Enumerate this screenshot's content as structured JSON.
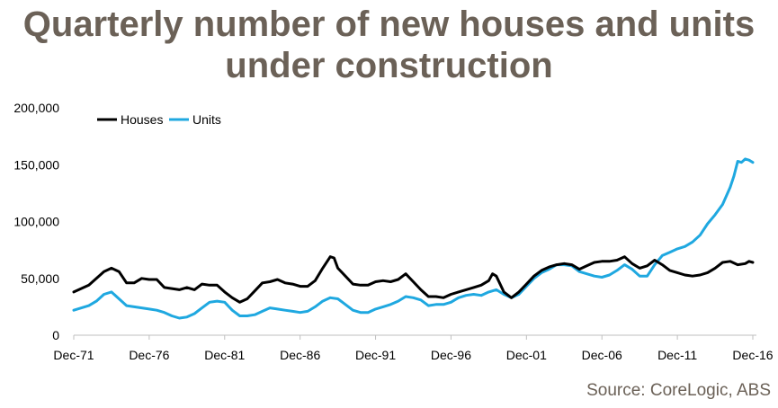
{
  "title_line1": "Quarterly number of new houses and units",
  "title_line2": "under construction",
  "source": "Source: CoreLogic, ABS",
  "colors": {
    "houses": "#000000",
    "units": "#1fa8e0",
    "title": "#6b6157"
  },
  "chart_data": {
    "type": "line",
    "title": "Quarterly number of new houses and units under construction",
    "xlabel": "",
    "ylabel": "",
    "x_start_year": 1971.92,
    "x_end_year": 2016.92,
    "xlim": [
      "Dec-71",
      "Dec-16"
    ],
    "ylim": [
      0,
      200000
    ],
    "y_ticks": [
      0,
      50000,
      100000,
      150000,
      200000
    ],
    "y_tick_labels": [
      "0",
      "50,000",
      "100,000",
      "150,000",
      "200,000"
    ],
    "x_ticks": [
      "Dec-71",
      "Dec-76",
      "Dec-81",
      "Dec-86",
      "Dec-91",
      "Dec-96",
      "Dec-01",
      "Dec-06",
      "Dec-11",
      "Dec-16"
    ],
    "grid": false,
    "legend": "top-left",
    "series": [
      {
        "name": "Houses",
        "color": "#000000",
        "points": [
          [
            "Dec-71",
            38000
          ],
          [
            "Dec-72",
            44000
          ],
          [
            "Dec-73",
            56000
          ],
          [
            "Jun-74",
            59000
          ],
          [
            "Dec-74",
            56000
          ],
          [
            "Jun-75",
            46000
          ],
          [
            "Dec-75",
            46000
          ],
          [
            "Jun-76",
            50000
          ],
          [
            "Dec-76",
            49000
          ],
          [
            "Jun-77",
            49000
          ],
          [
            "Dec-77",
            42000
          ],
          [
            "Jun-78",
            41000
          ],
          [
            "Dec-78",
            40000
          ],
          [
            "Jun-79",
            42000
          ],
          [
            "Dec-79",
            40000
          ],
          [
            "Jun-80",
            45000
          ],
          [
            "Dec-80",
            44000
          ],
          [
            "Jun-81",
            44000
          ],
          [
            "Dec-81",
            38000
          ],
          [
            "Jun-82",
            33000
          ],
          [
            "Dec-82",
            29000
          ],
          [
            "Jun-83",
            32000
          ],
          [
            "Dec-83",
            39000
          ],
          [
            "Jun-84",
            46000
          ],
          [
            "Dec-84",
            47000
          ],
          [
            "Jun-85",
            49000
          ],
          [
            "Dec-85",
            46000
          ],
          [
            "Jun-86",
            45000
          ],
          [
            "Dec-86",
            43000
          ],
          [
            "Jun-87",
            43000
          ],
          [
            "Dec-87",
            48000
          ],
          [
            "Jun-88",
            59000
          ],
          [
            "Dec-88",
            69000
          ],
          [
            "Mar-89",
            68000
          ],
          [
            "Jun-89",
            59000
          ],
          [
            "Dec-89",
            52000
          ],
          [
            "Jun-90",
            45000
          ],
          [
            "Dec-90",
            44000
          ],
          [
            "Jun-91",
            44000
          ],
          [
            "Dec-91",
            47000
          ],
          [
            "Jun-92",
            48000
          ],
          [
            "Dec-92",
            47000
          ],
          [
            "Jun-93",
            49000
          ],
          [
            "Dec-93",
            54000
          ],
          [
            "Jun-94",
            47000
          ],
          [
            "Dec-94",
            40000
          ],
          [
            "Jun-95",
            34000
          ],
          [
            "Dec-95",
            34000
          ],
          [
            "Jun-96",
            33000
          ],
          [
            "Dec-96",
            36000
          ],
          [
            "Jun-97",
            38000
          ],
          [
            "Dec-97",
            40000
          ],
          [
            "Jun-98",
            42000
          ],
          [
            "Dec-98",
            44000
          ],
          [
            "Jun-99",
            48000
          ],
          [
            "Sep-99",
            54000
          ],
          [
            "Dec-99",
            52000
          ],
          [
            "Jun-00",
            38000
          ],
          [
            "Dec-00",
            33000
          ],
          [
            "Jun-01",
            38000
          ],
          [
            "Dec-01",
            45000
          ],
          [
            "Jun-02",
            52000
          ],
          [
            "Dec-02",
            57000
          ],
          [
            "Jun-03",
            60000
          ],
          [
            "Dec-03",
            62000
          ],
          [
            "Jun-04",
            63000
          ],
          [
            "Dec-04",
            62000
          ],
          [
            "Jun-05",
            58000
          ],
          [
            "Dec-05",
            61000
          ],
          [
            "Jun-06",
            64000
          ],
          [
            "Dec-06",
            65000
          ],
          [
            "Jun-07",
            65000
          ],
          [
            "Dec-07",
            66000
          ],
          [
            "Jun-08",
            69000
          ],
          [
            "Dec-08",
            63000
          ],
          [
            "Jun-09",
            59000
          ],
          [
            "Dec-09",
            61000
          ],
          [
            "Jun-10",
            66000
          ],
          [
            "Dec-10",
            62000
          ],
          [
            "Jun-11",
            57000
          ],
          [
            "Dec-11",
            55000
          ],
          [
            "Jun-12",
            53000
          ],
          [
            "Dec-12",
            52000
          ],
          [
            "Jun-13",
            53000
          ],
          [
            "Dec-13",
            55000
          ],
          [
            "Jun-14",
            59000
          ],
          [
            "Dec-14",
            64000
          ],
          [
            "Jun-15",
            65000
          ],
          [
            "Dec-15",
            62000
          ],
          [
            "Jun-16",
            63000
          ],
          [
            "Sep-16",
            65000
          ],
          [
            "Dec-16",
            64000
          ]
        ]
      },
      {
        "name": "Units",
        "color": "#1fa8e0",
        "points": [
          [
            "Dec-71",
            22000
          ],
          [
            "Dec-72",
            26000
          ],
          [
            "Jun-73",
            30000
          ],
          [
            "Dec-73",
            36000
          ],
          [
            "Jun-74",
            38000
          ],
          [
            "Dec-74",
            32000
          ],
          [
            "Jun-75",
            26000
          ],
          [
            "Dec-75",
            25000
          ],
          [
            "Jun-76",
            24000
          ],
          [
            "Dec-76",
            23000
          ],
          [
            "Jun-77",
            22000
          ],
          [
            "Dec-77",
            20000
          ],
          [
            "Jun-78",
            17000
          ],
          [
            "Dec-78",
            15000
          ],
          [
            "Jun-79",
            16000
          ],
          [
            "Dec-79",
            19000
          ],
          [
            "Jun-80",
            24000
          ],
          [
            "Dec-80",
            29000
          ],
          [
            "Jun-81",
            30000
          ],
          [
            "Dec-81",
            29000
          ],
          [
            "Jun-82",
            22000
          ],
          [
            "Dec-82",
            17000
          ],
          [
            "Jun-83",
            17000
          ],
          [
            "Dec-83",
            18000
          ],
          [
            "Jun-84",
            21000
          ],
          [
            "Dec-84",
            24000
          ],
          [
            "Jun-85",
            23000
          ],
          [
            "Dec-85",
            22000
          ],
          [
            "Jun-86",
            21000
          ],
          [
            "Dec-86",
            20000
          ],
          [
            "Jun-87",
            21000
          ],
          [
            "Dec-87",
            25000
          ],
          [
            "Jun-88",
            30000
          ],
          [
            "Dec-88",
            33000
          ],
          [
            "Jun-89",
            32000
          ],
          [
            "Dec-89",
            27000
          ],
          [
            "Jun-90",
            22000
          ],
          [
            "Dec-90",
            20000
          ],
          [
            "Jun-91",
            20000
          ],
          [
            "Dec-91",
            23000
          ],
          [
            "Jun-92",
            25000
          ],
          [
            "Dec-92",
            27000
          ],
          [
            "Jun-93",
            30000
          ],
          [
            "Dec-93",
            34000
          ],
          [
            "Jun-94",
            33000
          ],
          [
            "Dec-94",
            31000
          ],
          [
            "Jun-95",
            26000
          ],
          [
            "Dec-95",
            27000
          ],
          [
            "Jun-96",
            27000
          ],
          [
            "Dec-96",
            29000
          ],
          [
            "Jun-97",
            33000
          ],
          [
            "Dec-97",
            35000
          ],
          [
            "Jun-98",
            36000
          ],
          [
            "Dec-98",
            35000
          ],
          [
            "Jun-99",
            38000
          ],
          [
            "Dec-99",
            40000
          ],
          [
            "Jun-00",
            36000
          ],
          [
            "Dec-00",
            33000
          ],
          [
            "Jun-01",
            36000
          ],
          [
            "Dec-01",
            43000
          ],
          [
            "Jun-02",
            50000
          ],
          [
            "Dec-02",
            55000
          ],
          [
            "Jun-03",
            58000
          ],
          [
            "Dec-03",
            62000
          ],
          [
            "Jun-04",
            62000
          ],
          [
            "Dec-04",
            61000
          ],
          [
            "Jun-05",
            56000
          ],
          [
            "Dec-05",
            54000
          ],
          [
            "Jun-06",
            52000
          ],
          [
            "Dec-06",
            51000
          ],
          [
            "Jun-07",
            53000
          ],
          [
            "Dec-07",
            57000
          ],
          [
            "Jun-08",
            62000
          ],
          [
            "Dec-08",
            58000
          ],
          [
            "Jun-09",
            52000
          ],
          [
            "Dec-09",
            52000
          ],
          [
            "Jun-10",
            62000
          ],
          [
            "Dec-10",
            70000
          ],
          [
            "Jun-11",
            73000
          ],
          [
            "Dec-11",
            76000
          ],
          [
            "Jun-12",
            78000
          ],
          [
            "Dec-12",
            82000
          ],
          [
            "Jun-13",
            88000
          ],
          [
            "Dec-13",
            98000
          ],
          [
            "Jun-14",
            106000
          ],
          [
            "Dec-14",
            115000
          ],
          [
            "Jun-15",
            130000
          ],
          [
            "Sep-15",
            140000
          ],
          [
            "Dec-15",
            153000
          ],
          [
            "Mar-16",
            152000
          ],
          [
            "Jun-16",
            155000
          ],
          [
            "Sep-16",
            154000
          ],
          [
            "Dec-16",
            152000
          ]
        ]
      }
    ]
  }
}
